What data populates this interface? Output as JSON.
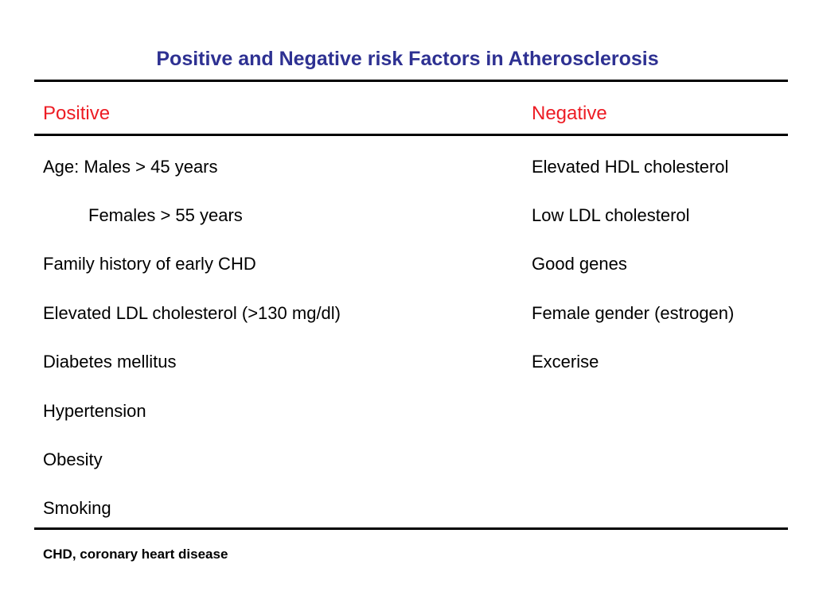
{
  "title": "Positive and Negative risk Factors in Atherosclerosis",
  "headers": {
    "positive": "Positive",
    "negative": "Negative"
  },
  "positive_factors": [
    "Age: Males > 45 years",
    "Females > 55 years",
    "Family history of early CHD",
    "Elevated LDL cholesterol (>130 mg/dl)",
    "Diabetes mellitus",
    "Hypertension",
    "Obesity",
    "Smoking"
  ],
  "negative_factors": [
    "Elevated HDL cholesterol",
    "Low LDL cholesterol",
    "Good genes",
    "Female gender (estrogen)",
    "Excerise"
  ],
  "footnote": "CHD, coronary heart disease",
  "colors": {
    "title": "#2e3192",
    "header": "#ed1c24",
    "text": "#000000"
  }
}
